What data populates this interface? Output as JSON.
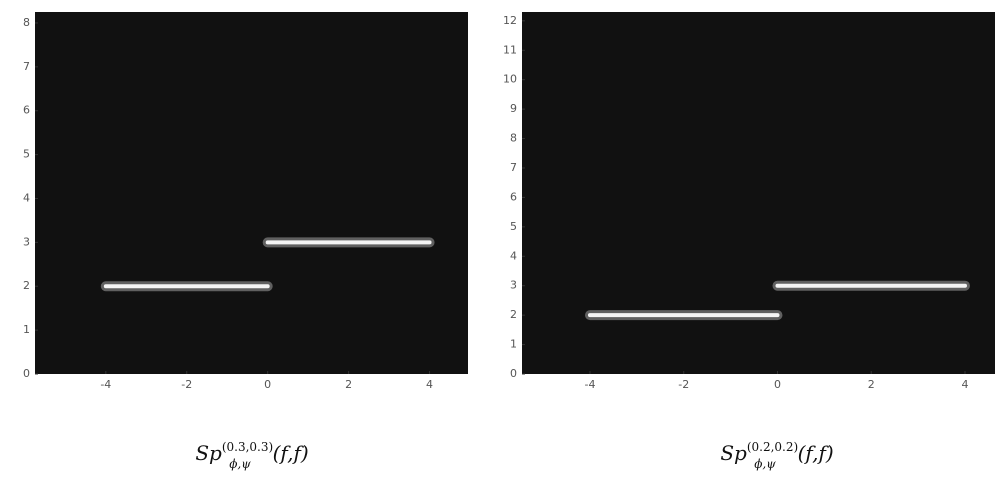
{
  "chart_data": [
    {
      "type": "line",
      "background": "#111111",
      "caption": {
        "base": "Sp",
        "superscript": "(0.3,0.3)",
        "subscript": "ϕ,ψ",
        "args": "(f,f)"
      },
      "xlim": [
        -5.75,
        4.95
      ],
      "xticks": [
        -4,
        -2,
        0,
        2,
        4
      ],
      "ylim": [
        0,
        8.25
      ],
      "yticks": [
        0,
        1,
        2,
        3,
        4,
        5,
        6,
        7,
        8
      ],
      "series": [
        {
          "color": "#f4f4f4",
          "x": [
            -4,
            0,
            0,
            0,
            4
          ],
          "values": [
            2,
            2,
            null,
            3,
            3
          ]
        }
      ]
    },
    {
      "type": "line",
      "background": "#111111",
      "caption": {
        "base": "Sp",
        "superscript": "(0.2,0.2)",
        "subscript": "ϕ,ψ",
        "args": "(f,f)"
      },
      "xlim": [
        -5.45,
        4.64
      ],
      "xticks": [
        -4,
        -2,
        0,
        2,
        4
      ],
      "ylim": [
        0,
        12.3
      ],
      "yticks": [
        0,
        1,
        2,
        3,
        4,
        5,
        6,
        7,
        8,
        9,
        10,
        11,
        12
      ],
      "series": [
        {
          "color": "#f4f4f4",
          "x": [
            -4,
            0,
            0,
            0,
            4
          ],
          "values": [
            2,
            2,
            null,
            3,
            3
          ]
        }
      ]
    }
  ]
}
